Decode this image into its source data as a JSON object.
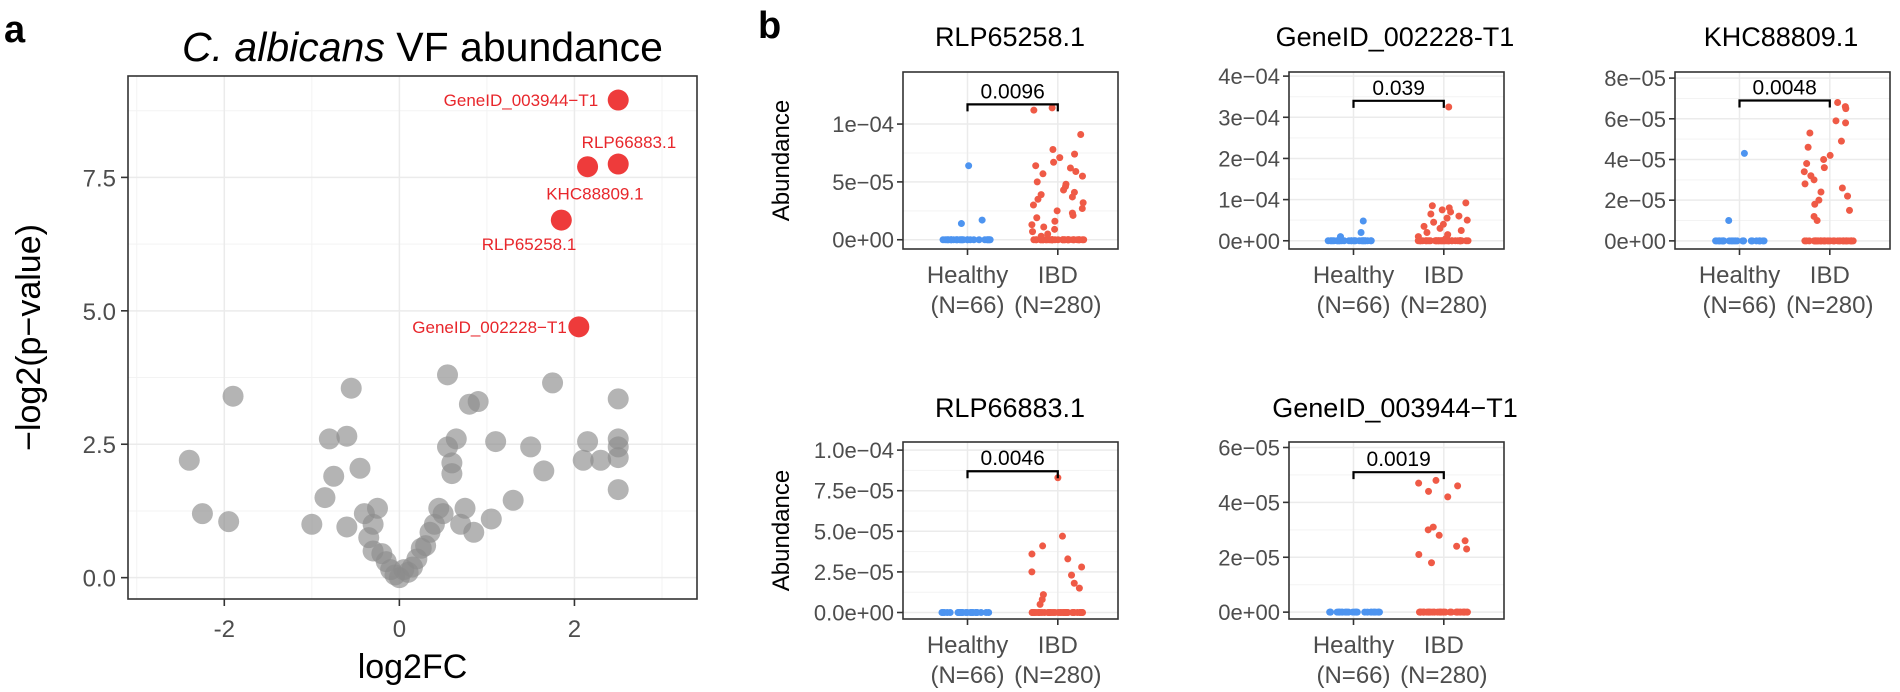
{
  "colors": {
    "grey_point": "#8c8c8c",
    "highlight": "#ee3b3b",
    "label_red": "#e8262b",
    "healthy": "#4d94f0",
    "ibd": "#ef5a46"
  },
  "panel_a": {
    "letter": "a"
  },
  "panel_b": {
    "letter": "b"
  },
  "chart_data": [
    {
      "id": "volcano",
      "type": "scatter",
      "title_italic": "C. albicans",
      "title_rest": " VF abundance",
      "xlabel": "log2FC",
      "ylabel": "−log2(p−value)",
      "xlim": [
        -3.1,
        3.4
      ],
      "ylim": [
        -0.4,
        9.4
      ],
      "xticks": [
        -2,
        0,
        2
      ],
      "yticks": [
        0.0,
        2.5,
        5.0,
        7.5
      ],
      "ytick_labels": [
        "0.0",
        "2.5",
        "5.0",
        "7.5"
      ],
      "grey_points": [
        [
          -2.4,
          2.2
        ],
        [
          -2.25,
          1.2
        ],
        [
          -1.95,
          1.05
        ],
        [
          -1.9,
          3.4
        ],
        [
          -1.0,
          1.0
        ],
        [
          -0.85,
          1.5
        ],
        [
          -0.8,
          2.6
        ],
        [
          -0.75,
          1.9
        ],
        [
          -0.6,
          2.65
        ],
        [
          -0.6,
          0.95
        ],
        [
          -0.55,
          3.55
        ],
        [
          -0.45,
          2.05
        ],
        [
          -0.4,
          1.2
        ],
        [
          -0.35,
          0.75
        ],
        [
          -0.3,
          0.5
        ],
        [
          -0.3,
          1.0
        ],
        [
          -0.25,
          1.3
        ],
        [
          -0.2,
          0.45
        ],
        [
          -0.15,
          0.3
        ],
        [
          -0.1,
          0.15
        ],
        [
          -0.05,
          0.05
        ],
        [
          0.0,
          0.0
        ],
        [
          0.05,
          0.15
        ],
        [
          0.1,
          0.1
        ],
        [
          0.15,
          0.2
        ],
        [
          0.2,
          0.35
        ],
        [
          0.25,
          0.55
        ],
        [
          0.3,
          0.6
        ],
        [
          0.35,
          0.85
        ],
        [
          0.4,
          1.0
        ],
        [
          0.45,
          1.3
        ],
        [
          0.5,
          1.2
        ],
        [
          0.55,
          2.45
        ],
        [
          0.55,
          3.8
        ],
        [
          0.6,
          1.95
        ],
        [
          0.6,
          2.15
        ],
        [
          0.65,
          2.6
        ],
        [
          0.7,
          1.0
        ],
        [
          0.75,
          1.3
        ],
        [
          0.8,
          3.25
        ],
        [
          0.85,
          0.85
        ],
        [
          0.9,
          3.3
        ],
        [
          1.05,
          1.1
        ],
        [
          1.1,
          2.55
        ],
        [
          1.3,
          1.45
        ],
        [
          1.5,
          2.45
        ],
        [
          1.65,
          2.0
        ],
        [
          1.75,
          3.65
        ],
        [
          2.1,
          2.2
        ],
        [
          2.15,
          2.55
        ],
        [
          2.3,
          2.2
        ],
        [
          2.5,
          3.35
        ],
        [
          2.5,
          2.6
        ],
        [
          2.5,
          2.45
        ],
        [
          2.5,
          2.25
        ],
        [
          2.5,
          1.65
        ]
      ],
      "highlighted": [
        {
          "label": "GeneID_003944−T1",
          "x": 2.5,
          "y": 8.95
        },
        {
          "label": "RLP66883.1",
          "x": 2.5,
          "y": 7.75
        },
        {
          "label": "KHC88809.1",
          "x": 2.15,
          "y": 7.7
        },
        {
          "label": "RLP65258.1",
          "x": 1.85,
          "y": 6.7
        },
        {
          "label": "GeneID_002228−T1",
          "x": 2.05,
          "y": 4.7
        }
      ]
    },
    {
      "id": "box1",
      "type": "scatter",
      "title": "RLP65258.1",
      "ylabel": "Abundance",
      "categories": [
        "Healthy\n(N=66)",
        "IBD\n(N=280)"
      ],
      "cat_line1": [
        "Healthy",
        "IBD"
      ],
      "cat_line2": [
        "(N=66)",
        "(N=280)"
      ],
      "ylim": [
        -8e-06,
        0.000145
      ],
      "yticks": [
        0,
        5e-05,
        0.0001
      ],
      "ytick_labels": [
        "0e+00",
        "5e−05",
        "1e−04"
      ],
      "pvalue": "0.0096",
      "bracket_y": 0.000117,
      "healthy_extra": [
        1.7e-05,
        1.4e-05,
        6.4e-05
      ],
      "ibd_extra": [
        0.000114,
        0.000112,
        9.1e-05,
        7.8e-05,
        7.4e-05,
        7.1e-05,
        6.7e-05,
        6.4e-05,
        6.2e-05,
        5.9e-05,
        5.7e-05,
        5.5e-05,
        5e-05,
        4.8e-05,
        4.6e-05,
        4.3e-05,
        4.1e-05,
        3.9e-05,
        3.7e-05,
        3.5e-05,
        3.2e-05,
        3e-05,
        2.7e-05,
        2.5e-05,
        2.3e-05,
        2.1e-05,
        1.9e-05,
        1.6e-05,
        1.3e-05,
        1.1e-05,
        9e-06,
        7e-06,
        5e-06,
        3e-06
      ]
    },
    {
      "id": "box2",
      "type": "scatter",
      "title": "GeneID_002228-T1",
      "ylabel": "",
      "cat_line1": [
        "Healthy",
        "IBD"
      ],
      "cat_line2": [
        "(N=66)",
        "(N=280)"
      ],
      "ylim": [
        -2e-05,
        0.00041
      ],
      "yticks": [
        0,
        0.0001,
        0.0002,
        0.0003,
        0.0004
      ],
      "ytick_labels": [
        "0e+00",
        "1e−04",
        "2e−04",
        "3e−04",
        "4e−04"
      ],
      "pvalue": "0.039",
      "bracket_y": 0.00034,
      "healthy_extra": [
        4.8e-05,
        2e-05,
        1e-05
      ],
      "ibd_extra": [
        0.000325,
        9.2e-05,
        8.5e-05,
        8e-05,
        7.5e-05,
        7e-05,
        6.5e-05,
        6e-05,
        5.5e-05,
        5e-05,
        4.5e-05,
        4e-05,
        3.5e-05,
        3e-05,
        2.5e-05,
        2e-05,
        1.5e-05,
        1e-05,
        5e-06
      ]
    },
    {
      "id": "box3",
      "type": "scatter",
      "title": "KHC88809.1",
      "ylabel": "",
      "cat_line1": [
        "Healthy",
        "IBD"
      ],
      "cat_line2": [
        "(N=66)",
        "(N=280)"
      ],
      "ylim": [
        -4e-06,
        8.3e-05
      ],
      "yticks": [
        0,
        2e-05,
        4e-05,
        6e-05,
        8e-05
      ],
      "ytick_labels": [
        "0e+00",
        "2e−05",
        "4e−05",
        "6e−05",
        "8e−05"
      ],
      "pvalue": "0.0048",
      "bracket_y": 6.9e-05,
      "healthy_extra": [
        4.3e-05,
        1e-05
      ],
      "ibd_extra": [
        6.8e-05,
        6.6e-05,
        6.5e-05,
        5.9e-05,
        5.8e-05,
        5.3e-05,
        4.9e-05,
        4.6e-05,
        4.2e-05,
        4e-05,
        3.8e-05,
        3.6e-05,
        3.4e-05,
        3.2e-05,
        3e-05,
        2.8e-05,
        2.6e-05,
        2.4e-05,
        2.2e-05,
        2e-05,
        1.8e-05,
        1.5e-05,
        1.2e-05,
        1e-05
      ]
    },
    {
      "id": "box4",
      "type": "scatter",
      "title": "RLP66883.1",
      "ylabel": "Abundance",
      "cat_line1": [
        "Healthy",
        "IBD"
      ],
      "cat_line2": [
        "(N=66)",
        "(N=280)"
      ],
      "ylim": [
        -4e-06,
        0.000105
      ],
      "yticks": [
        0,
        2.5e-05,
        5e-05,
        7.5e-05,
        0.0001
      ],
      "ytick_labels": [
        "0.0e+00",
        "2.5e−05",
        "5.0e−05",
        "7.5e−05",
        "1.0e−04"
      ],
      "pvalue": "0.0046",
      "bracket_y": 8.7e-05,
      "healthy_extra": [],
      "ibd_extra": [
        8.3e-05,
        4.7e-05,
        4.1e-05,
        3.6e-05,
        3.3e-05,
        2.8e-05,
        2.5e-05,
        2.3e-05,
        1.8e-05,
        1.5e-05,
        1.1e-05,
        8e-06,
        5e-06
      ]
    },
    {
      "id": "box5",
      "type": "scatter",
      "title": "GeneID_003944−T1",
      "ylabel": "",
      "cat_line1": [
        "Healthy",
        "IBD"
      ],
      "cat_line2": [
        "(N=66)",
        "(N=280)"
      ],
      "ylim": [
        -2.5e-06,
        6.2e-05
      ],
      "yticks": [
        0,
        2e-05,
        4e-05,
        6e-05
      ],
      "ytick_labels": [
        "0e+00",
        "2e−05",
        "4e−05",
        "6e−05"
      ],
      "pvalue": "0.0019",
      "bracket_y": 5.1e-05,
      "healthy_extra": [],
      "ibd_extra": [
        4.8e-05,
        4.7e-05,
        4.6e-05,
        4.4e-05,
        4.2e-05,
        3.1e-05,
        3e-05,
        2.8e-05,
        2.6e-05,
        2.4e-05,
        2.3e-05,
        2.1e-05,
        1.8e-05
      ]
    }
  ]
}
